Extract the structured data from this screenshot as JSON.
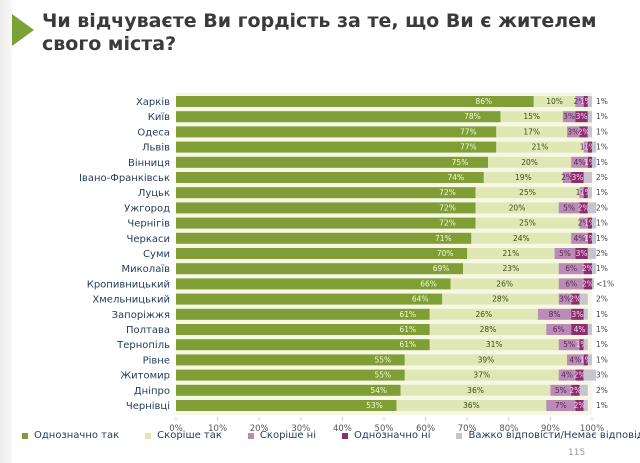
{
  "page": {
    "title": "Чи відчуваєте Ви гордість за те, що Ви є жителем свого міста?",
    "page_number": "115"
  },
  "chart_data": {
    "type": "bar",
    "orientation": "horizontal",
    "stacked": true,
    "title": "Чи відчуваєте Ви гордість за те, що Ви є жителем свого міста?",
    "xlabel": "",
    "ylabel": "",
    "xlim": [
      0,
      100
    ],
    "x_ticks": [
      "0%",
      "10%",
      "20%",
      "30%",
      "40%",
      "50%",
      "60%",
      "70%",
      "80%",
      "90%",
      "100%"
    ],
    "legend_position": "bottom",
    "categories": [
      "Харків",
      "Київ",
      "Одеса",
      "Львів",
      "Вінниця",
      "Івано-Франківськ",
      "Луцьк",
      "Ужгород",
      "Чернігів",
      "Черкаси",
      "Суми",
      "Миколаїв",
      "Кропивницький",
      "Хмельницький",
      "Запоріжжя",
      "Полтава",
      "Тернопіль",
      "Рівне",
      "Житомир",
      "Дніпро",
      "Чернівці"
    ],
    "series": [
      {
        "name": "Однозначно так",
        "color": "#7f9f36",
        "label_color": "#f4f7d8",
        "values": [
          86,
          78,
          77,
          77,
          75,
          74,
          72,
          72,
          72,
          71,
          70,
          69,
          66,
          64,
          61,
          61,
          61,
          55,
          55,
          54,
          53
        ],
        "labels": [
          "86%",
          "78%",
          "77%",
          "77%",
          "75%",
          "74%",
          "72%",
          "72%",
          "72%",
          "71%",
          "70%",
          "69%",
          "66%",
          "64%",
          "61%",
          "61%",
          "61%",
          "55%",
          "55%",
          "54%",
          "53%"
        ]
      },
      {
        "name": "Скоріше так",
        "color": "#dfe8b4",
        "label_color": "#3b4a1c",
        "values": [
          10,
          15,
          17,
          21,
          20,
          19,
          25,
          20,
          25,
          24,
          21,
          23,
          26,
          28,
          26,
          28,
          31,
          39,
          37,
          36,
          36
        ],
        "labels": [
          "10%",
          "15%",
          "17%",
          "21%",
          "20%",
          "19%",
          "25%",
          "20%",
          "25%",
          "24%",
          "21%",
          "23%",
          "26%",
          "28%",
          "26%",
          "28%",
          "31%",
          "39%",
          "37%",
          "36%",
          "36%"
        ]
      },
      {
        "name": "Скоріше ні",
        "color": "#b98bb5",
        "label_color": "#5a2a55",
        "values": [
          2,
          3,
          3,
          1,
          4,
          2,
          1,
          5,
          2,
          4,
          5,
          6,
          6,
          3,
          8,
          6,
          5,
          4,
          4,
          5,
          7
        ],
        "labels": [
          "2%",
          "3%",
          "3%",
          "1%",
          "4%",
          "2%",
          "1%",
          "5%",
          "2%",
          "4%",
          "5%",
          "6%",
          "6%",
          "3%",
          "8%",
          "6%",
          "5%",
          "4%",
          "4%",
          "5%",
          "7%"
        ]
      },
      {
        "name": "Однозначно ні",
        "color": "#8b2f6e",
        "label_color": "#f5d7ee",
        "values": [
          1,
          3,
          2,
          1,
          1,
          3,
          1,
          2,
          1,
          1,
          3,
          2,
          2,
          2,
          3,
          4,
          1,
          1,
          2,
          2,
          2
        ],
        "labels": [
          "1%",
          "3%",
          "2%",
          "1%",
          "1%",
          "3%",
          "1%",
          "2%",
          "1%",
          "1%",
          "3%",
          "2%",
          "2%",
          "2%",
          "3%",
          "4%",
          "1%",
          "1%",
          "2%",
          "2%",
          "2%"
        ]
      },
      {
        "name": "Важко відповісти/Немає відповіді",
        "color": "#c9c3cf",
        "label_color": "#444444",
        "values": [
          1,
          1,
          1,
          1,
          1,
          2,
          1,
          2,
          1,
          1,
          2,
          1,
          0.5,
          2,
          1,
          1,
          1,
          1,
          3,
          2,
          1
        ],
        "labels": [
          "1%",
          "1%",
          "1%",
          "1%",
          "1%",
          "2%",
          "1%",
          "2%",
          "1%",
          "1%",
          "2%",
          "1%",
          "<1%",
          "2%",
          "1%",
          "1%",
          "1%",
          "1%",
          "3%",
          "2%",
          "1%"
        ]
      }
    ]
  }
}
